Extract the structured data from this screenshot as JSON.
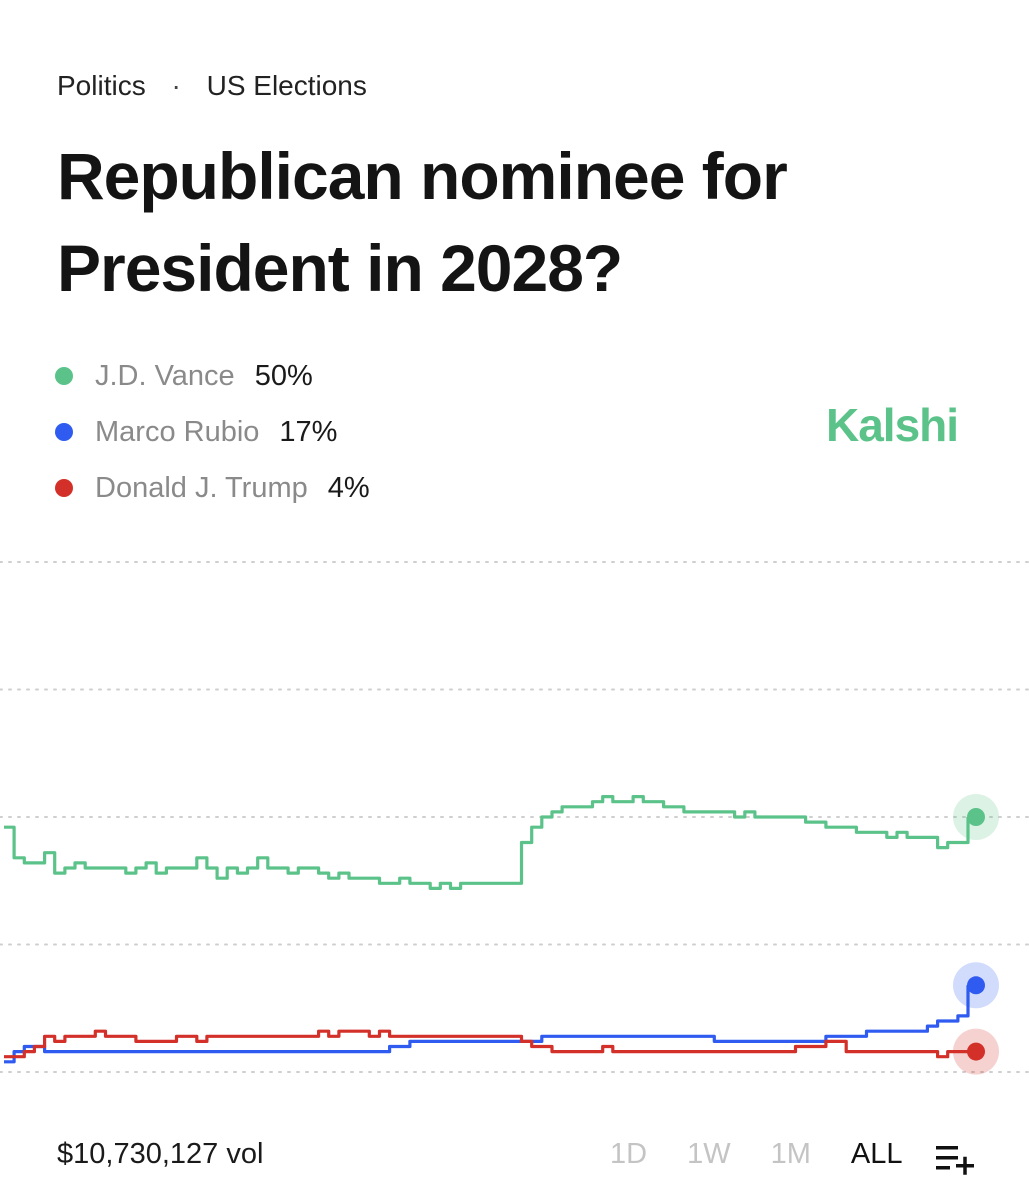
{
  "breadcrumb": {
    "category": "Politics",
    "separator": "·",
    "subcategory": "US Elections"
  },
  "title": "Republican nominee for President in 2028?",
  "brand": {
    "name": "Kalshi",
    "color": "#5BC389"
  },
  "legend": [
    {
      "name": "J.D. Vance",
      "value": "50%",
      "color": "#5BC389"
    },
    {
      "name": "Marco Rubio",
      "value": "17%",
      "color": "#2F5BF0"
    },
    {
      "name": "Donald J. Trump",
      "value": "4%",
      "color": "#D3302A"
    }
  ],
  "footer": {
    "volume": "$10,730,127 vol",
    "ranges": [
      {
        "label": "1D",
        "active": false
      },
      {
        "label": "1W",
        "active": false
      },
      {
        "label": "1M",
        "active": false
      },
      {
        "label": "ALL",
        "active": true
      }
    ],
    "icon": "add-to-list-icon"
  },
  "chart_data": {
    "type": "line",
    "xlabel": "",
    "ylabel": "",
    "ylim": [
      0,
      100
    ],
    "grid": true,
    "legend_placement": "top-left",
    "series": [
      {
        "name": "J.D. Vance",
        "color": "#5BC389",
        "values": [
          48,
          42,
          41,
          41,
          43,
          39,
          40,
          41,
          40,
          40,
          40,
          40,
          39,
          40,
          41,
          39,
          40,
          40,
          40,
          42,
          40,
          38,
          40,
          39,
          40,
          42,
          40,
          40,
          39,
          40,
          40,
          39,
          38,
          39,
          38,
          38,
          38,
          37,
          37,
          38,
          37,
          37,
          36,
          37,
          36,
          37,
          37,
          37,
          37,
          37,
          37,
          45,
          48,
          50,
          51,
          52,
          52,
          52,
          53,
          54,
          53,
          53,
          54,
          53,
          53,
          52,
          52,
          51,
          51,
          51,
          51,
          51,
          50,
          51,
          50,
          50,
          50,
          50,
          50,
          49,
          49,
          48,
          48,
          48,
          47,
          47,
          47,
          46,
          47,
          46,
          46,
          46,
          44,
          45,
          45,
          50
        ]
      },
      {
        "name": "Marco Rubio",
        "color": "#2F5BF0",
        "values": [
          2,
          4,
          5,
          5,
          4,
          4,
          4,
          4,
          4,
          4,
          4,
          4,
          4,
          4,
          4,
          4,
          4,
          4,
          4,
          4,
          4,
          4,
          4,
          4,
          4,
          4,
          4,
          4,
          4,
          4,
          4,
          4,
          4,
          4,
          4,
          4,
          4,
          4,
          5,
          5,
          6,
          6,
          6,
          6,
          6,
          6,
          6,
          6,
          6,
          6,
          6,
          6,
          6,
          7,
          7,
          7,
          7,
          7,
          7,
          7,
          7,
          7,
          7,
          7,
          7,
          7,
          7,
          7,
          7,
          7,
          6,
          6,
          6,
          6,
          6,
          6,
          6,
          6,
          6,
          6,
          6,
          7,
          7,
          7,
          7,
          8,
          8,
          8,
          8,
          8,
          8,
          9,
          10,
          10,
          11,
          17
        ]
      },
      {
        "name": "Donald J. Trump",
        "color": "#D3302A",
        "values": [
          3,
          3,
          4,
          5,
          7,
          6,
          7,
          7,
          7,
          8,
          7,
          7,
          7,
          6,
          6,
          6,
          6,
          7,
          7,
          6,
          7,
          7,
          7,
          7,
          7,
          7,
          7,
          7,
          7,
          7,
          7,
          8,
          7,
          8,
          8,
          8,
          7,
          8,
          7,
          7,
          7,
          7,
          7,
          7,
          7,
          7,
          7,
          7,
          7,
          7,
          7,
          6,
          5,
          5,
          4,
          4,
          4,
          4,
          4,
          5,
          4,
          4,
          4,
          4,
          4,
          4,
          4,
          4,
          4,
          4,
          4,
          4,
          4,
          4,
          4,
          4,
          4,
          4,
          5,
          5,
          5,
          6,
          6,
          4,
          4,
          4,
          4,
          4,
          4,
          4,
          4,
          4,
          3,
          4,
          4,
          4
        ]
      }
    ]
  }
}
